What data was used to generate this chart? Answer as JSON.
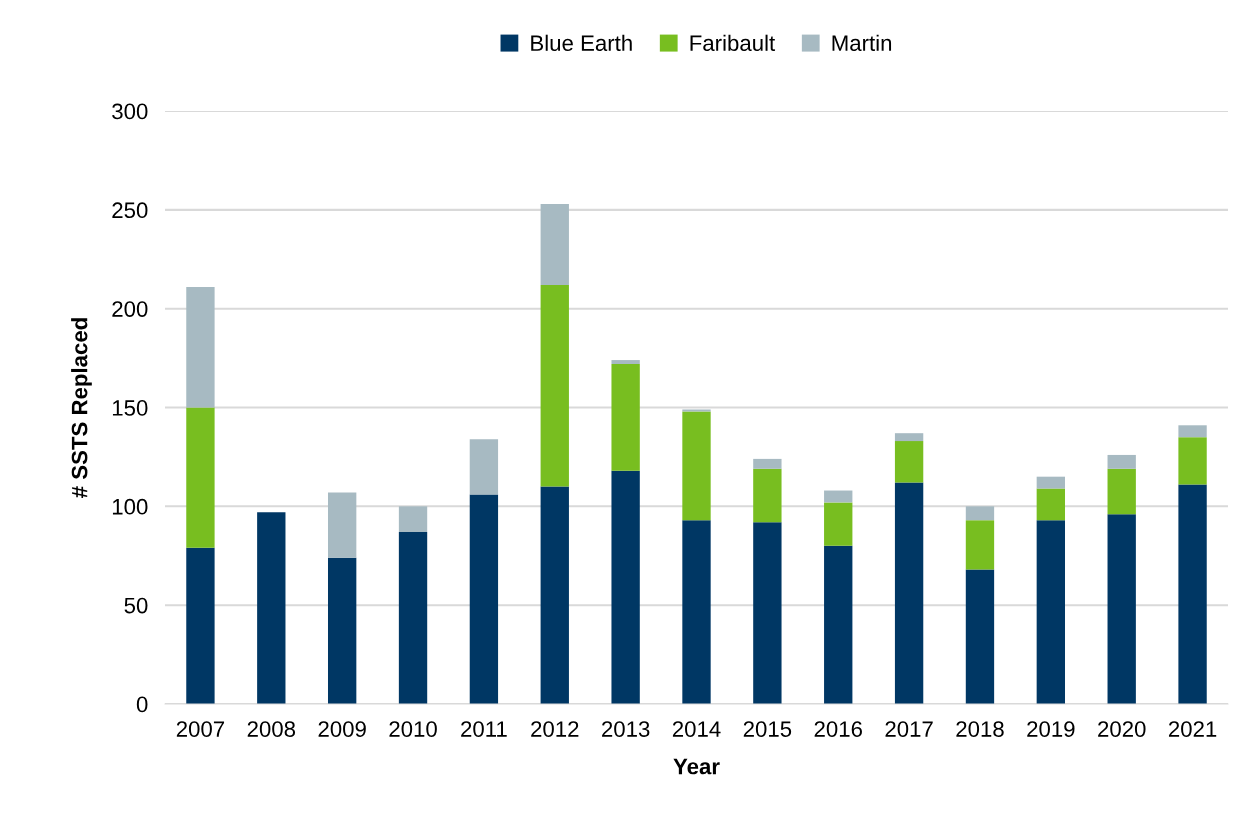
{
  "chart_data": {
    "type": "bar",
    "stacked": true,
    "xlabel": "Year",
    "ylabel": "# SSTS Replaced",
    "categories": [
      "2007",
      "2008",
      "2009",
      "2010",
      "2011",
      "2012",
      "2013",
      "2014",
      "2015",
      "2016",
      "2017",
      "2018",
      "2019",
      "2020",
      "2021"
    ],
    "series": [
      {
        "name": "Blue Earth",
        "color": "#003764",
        "values": [
          79,
          97,
          74,
          87,
          106,
          110,
          118,
          93,
          92,
          80,
          112,
          68,
          93,
          96,
          111
        ]
      },
      {
        "name": "Faribault",
        "color": "#78be20",
        "values": [
          71,
          0,
          0,
          0,
          0,
          102,
          54,
          55,
          27,
          22,
          21,
          25,
          16,
          23,
          24
        ]
      },
      {
        "name": "Martin",
        "color": "#a7bac2",
        "values": [
          61,
          0,
          33,
          13,
          28,
          41,
          2,
          1,
          5,
          6,
          4,
          7,
          6,
          7,
          6
        ]
      }
    ],
    "ylim": [
      0,
      300
    ],
    "yticks": [
      0,
      50,
      100,
      150,
      200,
      250,
      300
    ],
    "grid": "y",
    "legend": "top"
  }
}
